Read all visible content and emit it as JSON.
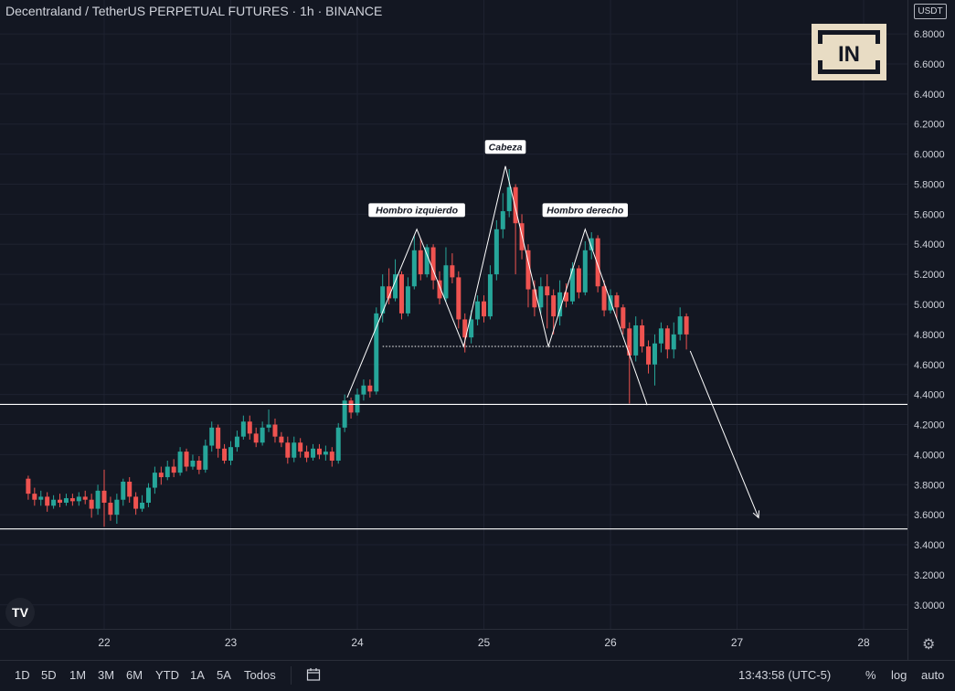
{
  "header": {
    "title": "Decentraland / TetherUS PERPETUAL FUTURES · 1h · BINANCE",
    "currency_badge": "USDT"
  },
  "watermark": {
    "logo_text": "IN",
    "icon": "beincrypto-logo"
  },
  "chart_data": {
    "type": "candlestick",
    "x_axis": {
      "ticks": [
        "22",
        "23",
        "24",
        "25",
        "26",
        "27",
        "28"
      ]
    },
    "y_axis": {
      "ticks": [
        "6.8000",
        "6.6000",
        "6.4000",
        "6.2000",
        "6.0000",
        "5.8000",
        "5.6000",
        "5.4000",
        "5.2000",
        "5.0000",
        "4.8000",
        "4.6000",
        "4.4000",
        "4.2000",
        "4.0000",
        "3.8000",
        "3.6000",
        "3.4000",
        "3.2000",
        "3.0000"
      ],
      "range": [
        2.84,
        7.0
      ]
    },
    "annotations": [
      {
        "text": "Hombro izquierdo"
      },
      {
        "text": "Cabeza"
      },
      {
        "text": "Hombro derecho"
      }
    ],
    "horizontal_levels": [
      {
        "label": "4.3342",
        "value": 4.3342
      },
      {
        "label": "3.5054",
        "value": 3.5054
      }
    ],
    "neckline": 4.72,
    "pattern_points": [
      {
        "day": 23.92,
        "price": 4.38
      },
      {
        "day": 24.47,
        "price": 5.5
      },
      {
        "day": 24.84,
        "price": 4.72
      },
      {
        "day": 25.17,
        "price": 5.92
      },
      {
        "day": 25.51,
        "price": 4.72
      },
      {
        "day": 25.8,
        "price": 5.5
      },
      {
        "day": 26.29,
        "price": 4.33
      }
    ],
    "projection": [
      {
        "day": 26.63,
        "price": 4.69
      },
      {
        "day": 27.17,
        "price": 3.58
      }
    ],
    "candles": [
      [
        21.4,
        3.84,
        3.74,
        3.86,
        3.7
      ],
      [
        21.45,
        3.74,
        3.7,
        3.78,
        3.66
      ],
      [
        21.5,
        3.7,
        3.72,
        3.76,
        3.66
      ],
      [
        21.55,
        3.72,
        3.66,
        3.75,
        3.62
      ],
      [
        21.6,
        3.66,
        3.7,
        3.73,
        3.64
      ],
      [
        21.65,
        3.7,
        3.68,
        3.74,
        3.65
      ],
      [
        21.7,
        3.68,
        3.71,
        3.74,
        3.66
      ],
      [
        21.75,
        3.71,
        3.69,
        3.74,
        3.66
      ],
      [
        21.8,
        3.69,
        3.72,
        3.75,
        3.66
      ],
      [
        21.85,
        3.72,
        3.7,
        3.76,
        3.67
      ],
      [
        21.9,
        3.7,
        3.64,
        3.74,
        3.58
      ],
      [
        21.95,
        3.64,
        3.76,
        3.8,
        3.6
      ],
      [
        22.0,
        3.76,
        3.68,
        3.9,
        3.52
      ],
      [
        22.05,
        3.68,
        3.6,
        3.72,
        3.56
      ],
      [
        22.1,
        3.6,
        3.7,
        3.74,
        3.54
      ],
      [
        22.15,
        3.7,
        3.82,
        3.84,
        3.66
      ],
      [
        22.2,
        3.82,
        3.72,
        3.85,
        3.68
      ],
      [
        22.25,
        3.72,
        3.64,
        3.75,
        3.6
      ],
      [
        22.3,
        3.64,
        3.68,
        3.73,
        3.62
      ],
      [
        22.35,
        3.68,
        3.78,
        3.81,
        3.65
      ],
      [
        22.4,
        3.78,
        3.88,
        3.92,
        3.74
      ],
      [
        22.45,
        3.88,
        3.85,
        3.92,
        3.8
      ],
      [
        22.5,
        3.85,
        3.92,
        3.96,
        3.83
      ],
      [
        22.55,
        3.92,
        3.88,
        3.97,
        3.85
      ],
      [
        22.6,
        3.88,
        4.02,
        4.05,
        3.86
      ],
      [
        22.65,
        4.02,
        3.92,
        4.04,
        3.89
      ],
      [
        22.7,
        3.92,
        3.96,
        4.0,
        3.9
      ],
      [
        22.75,
        3.96,
        3.9,
        3.99,
        3.87
      ],
      [
        22.8,
        3.9,
        4.06,
        4.1,
        3.88
      ],
      [
        22.85,
        4.06,
        4.18,
        4.22,
        4.02
      ],
      [
        22.9,
        4.18,
        4.04,
        4.2,
        3.98
      ],
      [
        22.95,
        4.04,
        3.96,
        4.07,
        3.94
      ],
      [
        23.0,
        3.96,
        4.05,
        4.09,
        3.93
      ],
      [
        23.05,
        4.05,
        4.12,
        4.16,
        4.02
      ],
      [
        23.1,
        4.12,
        4.22,
        4.26,
        4.1
      ],
      [
        23.15,
        4.22,
        4.14,
        4.26,
        4.1
      ],
      [
        23.2,
        4.14,
        4.08,
        4.18,
        4.05
      ],
      [
        23.25,
        4.08,
        4.18,
        4.22,
        4.06
      ],
      [
        23.3,
        4.18,
        4.2,
        4.3,
        4.15
      ],
      [
        23.35,
        4.2,
        4.12,
        4.24,
        4.08
      ],
      [
        23.4,
        4.12,
        4.08,
        4.15,
        4.05
      ],
      [
        23.45,
        4.08,
        3.98,
        4.12,
        3.94
      ],
      [
        23.5,
        3.98,
        4.08,
        4.12,
        3.95
      ],
      [
        23.55,
        4.08,
        4.02,
        4.11,
        3.98
      ],
      [
        23.6,
        4.02,
        3.98,
        4.06,
        3.95
      ],
      [
        23.65,
        3.98,
        4.04,
        4.07,
        3.96
      ],
      [
        23.7,
        4.04,
        4.0,
        4.07,
        3.97
      ],
      [
        23.75,
        4.0,
        4.02,
        4.06,
        3.96
      ],
      [
        23.8,
        4.02,
        3.96,
        4.05,
        3.92
      ],
      [
        23.85,
        3.96,
        4.18,
        4.21,
        3.94
      ],
      [
        23.9,
        4.18,
        4.36,
        4.4,
        4.15
      ],
      [
        23.95,
        4.36,
        4.28,
        4.38,
        4.24
      ],
      [
        24.0,
        4.28,
        4.4,
        4.44,
        4.26
      ],
      [
        24.05,
        4.4,
        4.46,
        4.5,
        4.36
      ],
      [
        24.1,
        4.46,
        4.42,
        4.5,
        4.38
      ],
      [
        24.15,
        4.42,
        4.94,
        4.98,
        4.4
      ],
      [
        24.2,
        4.94,
        5.12,
        5.2,
        4.88
      ],
      [
        24.25,
        5.12,
        5.04,
        5.24,
        5.0
      ],
      [
        24.3,
        5.04,
        5.2,
        5.3,
        5.02
      ],
      [
        24.35,
        5.2,
        4.94,
        5.22,
        4.9
      ],
      [
        24.4,
        4.94,
        5.12,
        5.18,
        4.92
      ],
      [
        24.45,
        5.12,
        5.36,
        5.46,
        5.1
      ],
      [
        24.5,
        5.36,
        5.2,
        5.44,
        5.16
      ],
      [
        24.55,
        5.2,
        5.38,
        5.4,
        5.18
      ],
      [
        24.6,
        5.38,
        5.16,
        5.4,
        5.1
      ],
      [
        24.65,
        5.16,
        5.04,
        5.22,
        5.0
      ],
      [
        24.7,
        5.04,
        5.26,
        5.38,
        5.02
      ],
      [
        24.75,
        5.26,
        5.18,
        5.34,
        5.14
      ],
      [
        24.8,
        5.18,
        4.9,
        5.22,
        4.84
      ],
      [
        24.85,
        4.9,
        4.78,
        4.94,
        4.68
      ],
      [
        24.9,
        4.78,
        4.9,
        4.96,
        4.74
      ],
      [
        24.95,
        4.9,
        5.02,
        5.06,
        4.86
      ],
      [
        25.0,
        5.02,
        4.92,
        5.06,
        4.88
      ],
      [
        25.05,
        4.92,
        5.2,
        5.26,
        4.9
      ],
      [
        25.1,
        5.2,
        5.5,
        5.56,
        5.16
      ],
      [
        25.15,
        5.5,
        5.62,
        5.74,
        5.44
      ],
      [
        25.2,
        5.62,
        5.78,
        5.9,
        5.58
      ],
      [
        25.25,
        5.78,
        5.54,
        5.8,
        5.2
      ],
      [
        25.3,
        5.54,
        5.36,
        5.6,
        5.3
      ],
      [
        25.35,
        5.36,
        5.1,
        5.4,
        4.98
      ],
      [
        25.4,
        5.1,
        4.98,
        5.16,
        4.92
      ],
      [
        25.45,
        4.98,
        5.12,
        5.18,
        4.94
      ],
      [
        25.5,
        5.12,
        5.06,
        5.2,
        4.84
      ],
      [
        25.55,
        5.06,
        4.92,
        5.1,
        4.8
      ],
      [
        25.6,
        4.92,
        5.08,
        5.16,
        4.86
      ],
      [
        25.65,
        5.08,
        5.02,
        5.14,
        4.98
      ],
      [
        25.7,
        5.02,
        5.24,
        5.28,
        5.0
      ],
      [
        25.75,
        5.24,
        5.08,
        5.26,
        5.04
      ],
      [
        25.8,
        5.08,
        5.36,
        5.42,
        5.06
      ],
      [
        25.85,
        5.36,
        5.44,
        5.48,
        5.3
      ],
      [
        25.9,
        5.44,
        5.12,
        5.46,
        5.08
      ],
      [
        25.95,
        5.12,
        4.96,
        5.16,
        4.92
      ],
      [
        26.0,
        4.96,
        5.06,
        5.1,
        4.94
      ],
      [
        26.05,
        5.06,
        4.98,
        5.08,
        4.9
      ],
      [
        26.1,
        4.98,
        4.84,
        5.0,
        4.8
      ],
      [
        26.15,
        4.84,
        4.66,
        4.88,
        4.34
      ],
      [
        26.2,
        4.66,
        4.86,
        4.92,
        4.62
      ],
      [
        26.25,
        4.86,
        4.72,
        4.9,
        4.68
      ],
      [
        26.3,
        4.72,
        4.6,
        4.76,
        4.54
      ],
      [
        26.35,
        4.6,
        4.74,
        4.8,
        4.46
      ],
      [
        26.4,
        4.74,
        4.84,
        4.88,
        4.68
      ],
      [
        26.45,
        4.84,
        4.7,
        4.86,
        4.64
      ],
      [
        26.5,
        4.7,
        4.8,
        4.88,
        4.64
      ],
      [
        26.55,
        4.8,
        4.92,
        4.98,
        4.76
      ],
      [
        26.6,
        4.92,
        4.8,
        4.94,
        4.7
      ]
    ]
  },
  "footer": {
    "timeframes": [
      "1D",
      "5D",
      "1M",
      "3M",
      "6M",
      "YTD",
      "1A",
      "5A",
      "Todos"
    ],
    "clock": "13:43:58 (UTC-5)",
    "percent_label": "%",
    "log_label": "log",
    "auto_label": "auto"
  },
  "colors": {
    "up": "#26a69a",
    "down": "#ef5350",
    "background": "#131722",
    "grid": "#1e2230",
    "text": "#d1d4dc"
  },
  "icons": {
    "settings": "gear-icon",
    "date_range": "calendar-icon",
    "brand": "tradingview-logo"
  }
}
